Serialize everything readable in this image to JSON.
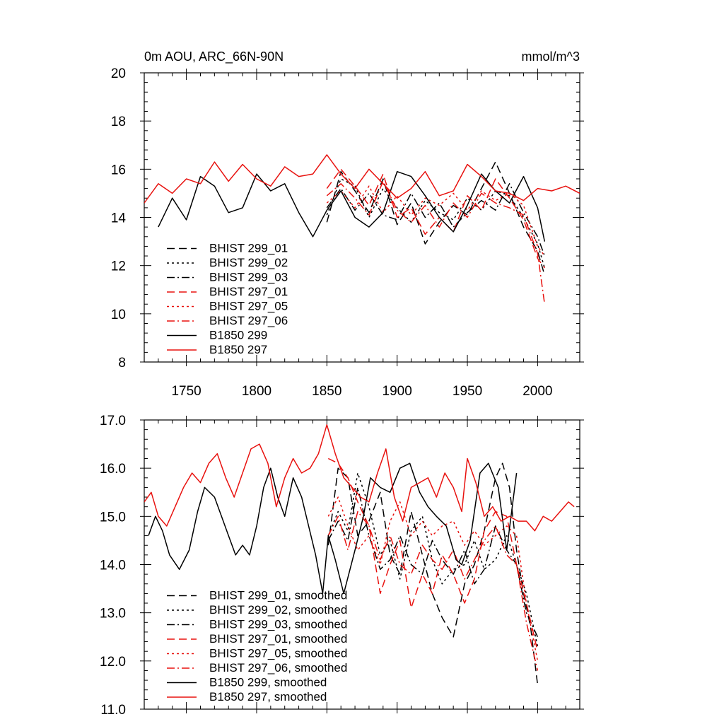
{
  "chart_data": [
    {
      "type": "line",
      "title": "0m AOU, ARC_66N-90N",
      "units": "mmol/m^3",
      "xlim": [
        1720,
        2030
      ],
      "ylim": [
        8,
        20
      ],
      "xticks": [
        1750,
        1800,
        1850,
        1900,
        1950,
        2000
      ],
      "xtick_labels": [
        "1750",
        "1800",
        "1850",
        "1900",
        "1950",
        "2000"
      ],
      "yticks": [
        8,
        10,
        12,
        14,
        16,
        18,
        20
      ],
      "ytick_labels": [
        "8",
        "10",
        "12",
        "14",
        "16",
        "18",
        "20"
      ],
      "legend_position": "bottom-left",
      "series": [
        {
          "name": "BHIST 299_01",
          "color": "#000000",
          "dash": "dashed",
          "x": [
            1850,
            1860,
            1870,
            1880,
            1890,
            1900,
            1910,
            1920,
            1930,
            1940,
            1950,
            1960,
            1970,
            1980,
            1990,
            2000,
            2005
          ],
          "y": [
            13.8,
            15.9,
            15.1,
            14.2,
            15.6,
            13.7,
            14.6,
            12.9,
            13.8,
            14.5,
            14.1,
            15.2,
            16.3,
            15.0,
            13.6,
            12.6,
            11.6
          ]
        },
        {
          "name": "BHIST 299_02",
          "color": "#000000",
          "dash": "dotted",
          "x": [
            1850,
            1860,
            1870,
            1880,
            1890,
            1900,
            1910,
            1920,
            1930,
            1940,
            1950,
            1960,
            1970,
            1980,
            1990,
            2000,
            2005
          ],
          "y": [
            14.1,
            15.6,
            15.3,
            14.0,
            15.2,
            14.4,
            13.8,
            14.7,
            14.2,
            13.9,
            14.8,
            14.3,
            15.1,
            14.9,
            14.0,
            12.9,
            11.9
          ]
        },
        {
          "name": "BHIST 299_03",
          "color": "#000000",
          "dash": "dashdot",
          "x": [
            1850,
            1860,
            1870,
            1880,
            1890,
            1900,
            1910,
            1920,
            1930,
            1940,
            1950,
            1960,
            1970,
            1980,
            1990,
            2000,
            2005
          ],
          "y": [
            14.4,
            15.2,
            14.3,
            15.0,
            14.1,
            13.9,
            15.0,
            14.0,
            14.6,
            13.6,
            14.2,
            14.7,
            14.3,
            15.4,
            14.2,
            13.2,
            12.4
          ]
        },
        {
          "name": "BHIST 297_01",
          "color": "#e8120f",
          "dash": "dashed",
          "x": [
            1850,
            1860,
            1870,
            1880,
            1890,
            1900,
            1910,
            1920,
            1930,
            1940,
            1950,
            1960,
            1970,
            1980,
            1990,
            2000,
            2005
          ],
          "y": [
            15.2,
            16.0,
            15.3,
            14.5,
            15.8,
            14.0,
            14.4,
            13.3,
            14.0,
            13.4,
            14.9,
            14.3,
            15.6,
            14.8,
            13.9,
            12.3,
            11.9
          ]
        },
        {
          "name": "BHIST 297_05",
          "color": "#e8120f",
          "dash": "dotted",
          "x": [
            1850,
            1860,
            1870,
            1880,
            1890,
            1900,
            1910,
            1920,
            1930,
            1940,
            1950,
            1960,
            1970,
            1980,
            1990,
            2000,
            2005
          ],
          "y": [
            14.6,
            15.1,
            14.4,
            15.3,
            14.2,
            14.9,
            14.1,
            14.8,
            14.5,
            15.0,
            14.3,
            15.1,
            14.7,
            15.0,
            14.5,
            12.8,
            12.4
          ]
        },
        {
          "name": "BHIST 297_06",
          "color": "#e8120f",
          "dash": "dashdot",
          "x": [
            1850,
            1860,
            1870,
            1880,
            1890,
            1900,
            1910,
            1920,
            1930,
            1940,
            1950,
            1960,
            1970,
            1980,
            1990,
            2000,
            2005
          ],
          "y": [
            14.9,
            15.4,
            14.8,
            14.1,
            15.5,
            14.3,
            13.8,
            14.5,
            13.6,
            14.6,
            14.0,
            15.0,
            14.6,
            14.4,
            14.1,
            12.5,
            10.4
          ]
        },
        {
          "name": "B1850 299",
          "color": "#000000",
          "dash": "solid",
          "x": [
            1730,
            1740,
            1750,
            1760,
            1770,
            1780,
            1790,
            1800,
            1810,
            1820,
            1830,
            1840,
            1850,
            1860,
            1870,
            1880,
            1890,
            1900,
            1910,
            1920,
            1930,
            1940,
            1950,
            1960,
            1970,
            1980,
            1990,
            2000,
            2005
          ],
          "y": [
            13.6,
            14.8,
            13.9,
            15.7,
            15.3,
            14.2,
            14.4,
            15.8,
            15.1,
            15.4,
            14.2,
            13.2,
            14.3,
            15.1,
            14.0,
            13.6,
            14.2,
            15.9,
            15.7,
            14.9,
            14.0,
            13.4,
            14.5,
            15.8,
            15.1,
            14.6,
            15.7,
            14.4,
            13.0
          ]
        },
        {
          "name": "B1850 297",
          "color": "#e8120f",
          "dash": "solid",
          "x": [
            1720,
            1730,
            1740,
            1750,
            1760,
            1770,
            1780,
            1790,
            1800,
            1810,
            1820,
            1830,
            1840,
            1850,
            1860,
            1870,
            1880,
            1890,
            1900,
            1910,
            1920,
            1930,
            1940,
            1950,
            1960,
            1970,
            1980,
            1990,
            2000,
            2010,
            2020,
            2030
          ],
          "y": [
            14.6,
            15.4,
            15.0,
            15.6,
            15.4,
            16.3,
            15.5,
            16.2,
            15.6,
            15.3,
            16.1,
            15.7,
            15.8,
            16.6,
            15.8,
            15.2,
            16.0,
            15.4,
            14.8,
            15.2,
            15.9,
            14.9,
            15.1,
            16.2,
            15.7,
            15.1,
            15.0,
            14.7,
            15.2,
            15.1,
            15.3,
            15.0
          ]
        }
      ]
    },
    {
      "type": "line",
      "title": "",
      "xlim": [
        1720,
        2030
      ],
      "ylim": [
        11.0,
        17.0
      ],
      "yticks": [
        11.0,
        12.0,
        13.0,
        14.0,
        15.0,
        16.0,
        17.0
      ],
      "ytick_labels": [
        "11.0",
        "12.0",
        "13.0",
        "14.0",
        "15.0",
        "16.0",
        "17.0"
      ],
      "xticks": [
        1750,
        1800,
        1850,
        1900,
        1950,
        2000
      ],
      "legend_position": "bottom-left",
      "series": [
        {
          "name": "BHIST 299_01, smoothed",
          "color": "#000000",
          "dash": "dashed",
          "x": [
            1851,
            1858,
            1865,
            1872,
            1880,
            1888,
            1895,
            1902,
            1910,
            1918,
            1925,
            1932,
            1940,
            1948,
            1955,
            1962,
            1970,
            1975,
            1980,
            1985,
            1990,
            1995,
            2000
          ],
          "y": [
            14.4,
            16.0,
            15.8,
            14.6,
            14.9,
            15.5,
            14.2,
            13.8,
            15.1,
            14.2,
            13.4,
            12.9,
            12.5,
            13.6,
            14.0,
            14.7,
            15.8,
            16.1,
            15.6,
            14.3,
            13.4,
            12.7,
            11.5
          ]
        },
        {
          "name": "BHIST 299_02, smoothed",
          "color": "#000000",
          "dash": "dotted",
          "x": [
            1851,
            1858,
            1865,
            1872,
            1880,
            1888,
            1895,
            1902,
            1910,
            1918,
            1925,
            1932,
            1940,
            1948,
            1955,
            1962,
            1970,
            1978,
            1985,
            1992,
            2000
          ],
          "y": [
            14.6,
            15.1,
            14.7,
            15.9,
            15.2,
            14.2,
            14.5,
            13.7,
            14.7,
            15.0,
            14.1,
            13.6,
            13.9,
            14.0,
            14.5,
            13.9,
            14.1,
            14.6,
            14.0,
            13.4,
            12.3
          ]
        },
        {
          "name": "BHIST 299_03, smoothed",
          "color": "#000000",
          "dash": "dashdot",
          "x": [
            1851,
            1858,
            1865,
            1872,
            1880,
            1888,
            1895,
            1902,
            1910,
            1918,
            1925,
            1932,
            1940,
            1948,
            1955,
            1962,
            1970,
            1978,
            1985,
            1992,
            2000
          ],
          "y": [
            14.5,
            14.9,
            14.5,
            15.6,
            14.6,
            13.9,
            14.1,
            14.6,
            14.0,
            13.8,
            14.5,
            14.1,
            13.8,
            14.3,
            13.6,
            13.9,
            14.8,
            14.3,
            14.0,
            13.0,
            12.5
          ]
        },
        {
          "name": "BHIST 297_01, smoothed",
          "color": "#e8120f",
          "dash": "dashed",
          "x": [
            1851,
            1858,
            1865,
            1872,
            1880,
            1888,
            1895,
            1902,
            1910,
            1918,
            1925,
            1932,
            1940,
            1948,
            1955,
            1962,
            1970,
            1978,
            1985,
            1992,
            2000
          ],
          "y": [
            16.2,
            16.1,
            15.8,
            15.3,
            14.8,
            13.4,
            14.0,
            14.5,
            13.1,
            13.8,
            13.4,
            14.2,
            13.8,
            13.2,
            13.7,
            14.7,
            15.1,
            15.0,
            14.0,
            13.2,
            12.2
          ]
        },
        {
          "name": "BHIST 297_05, smoothed",
          "color": "#e8120f",
          "dash": "dotted",
          "x": [
            1851,
            1858,
            1865,
            1872,
            1880,
            1888,
            1895,
            1902,
            1910,
            1918,
            1925,
            1932,
            1940,
            1948,
            1955,
            1962,
            1970,
            1978,
            1985,
            1992,
            2000
          ],
          "y": [
            15.0,
            15.4,
            14.8,
            14.3,
            14.6,
            14.0,
            14.9,
            15.3,
            14.6,
            14.9,
            14.6,
            14.8,
            14.9,
            14.4,
            14.7,
            14.4,
            14.6,
            14.8,
            14.6,
            13.2,
            12.0
          ]
        },
        {
          "name": "BHIST 297_06, smoothed",
          "color": "#e8120f",
          "dash": "dashdot",
          "x": [
            1851,
            1858,
            1865,
            1872,
            1880,
            1888,
            1895,
            1902,
            1910,
            1918,
            1925,
            1932,
            1940,
            1948,
            1955,
            1962,
            1970,
            1978,
            1985,
            1992,
            2000
          ],
          "y": [
            14.6,
            15.0,
            14.3,
            15.1,
            14.8,
            14.1,
            14.6,
            14.0,
            13.8,
            14.4,
            14.1,
            13.9,
            14.3,
            13.7,
            14.1,
            14.5,
            14.8,
            14.2,
            14.0,
            12.8,
            11.8
          ]
        },
        {
          "name": "B1850 299, smoothed",
          "color": "#000000",
          "dash": "solid",
          "x": [
            1723,
            1728,
            1733,
            1738,
            1745,
            1752,
            1758,
            1763,
            1770,
            1775,
            1780,
            1785,
            1790,
            1795,
            1800,
            1805,
            1810,
            1815,
            1820,
            1826,
            1832,
            1837,
            1842,
            1847,
            1851,
            1856,
            1862,
            1870,
            1876,
            1881,
            1888,
            1895,
            1902,
            1909,
            1916,
            1922,
            1928,
            1935,
            1942,
            1946,
            1952,
            1959,
            1965,
            1972,
            1978,
            1985
          ],
          "y": [
            14.6,
            15.0,
            14.7,
            14.2,
            13.9,
            14.3,
            15.1,
            15.6,
            15.4,
            15.0,
            14.6,
            14.2,
            14.4,
            14.2,
            14.8,
            15.6,
            16.0,
            15.4,
            15.0,
            15.8,
            15.4,
            14.8,
            14.2,
            13.4,
            14.6,
            14.1,
            13.4,
            14.3,
            15.0,
            15.8,
            15.6,
            15.5,
            16.0,
            16.1,
            15.5,
            15.2,
            15.0,
            14.8,
            14.1,
            14.0,
            14.5,
            15.9,
            16.1,
            15.6,
            14.3,
            15.9
          ]
        },
        {
          "name": "B1850 297, smoothed",
          "color": "#e8120f",
          "dash": "solid",
          "x": [
            1720,
            1725,
            1730,
            1736,
            1742,
            1748,
            1754,
            1760,
            1766,
            1772,
            1778,
            1784,
            1790,
            1796,
            1802,
            1808,
            1814,
            1820,
            1826,
            1832,
            1838,
            1844,
            1850,
            1856,
            1862,
            1868,
            1874,
            1880,
            1886,
            1892,
            1898,
            1904,
            1910,
            1916,
            1922,
            1928,
            1934,
            1940,
            1946,
            1950,
            1956,
            1962,
            1968,
            1974,
            1980,
            1986,
            1992,
            1998,
            2004,
            2010,
            2016,
            2022,
            2026
          ],
          "y": [
            15.3,
            15.5,
            15.0,
            14.8,
            15.2,
            15.6,
            15.9,
            15.7,
            16.1,
            16.3,
            15.8,
            15.4,
            15.9,
            16.4,
            16.5,
            16.1,
            15.2,
            15.8,
            16.2,
            15.9,
            16.0,
            16.3,
            16.9,
            16.3,
            15.8,
            15.6,
            15.4,
            15.3,
            15.9,
            16.4,
            15.4,
            14.9,
            15.6,
            15.7,
            15.8,
            15.4,
            15.9,
            15.6,
            15.1,
            16.2,
            15.7,
            15.0,
            15.2,
            14.9,
            15.0,
            14.9,
            14.9,
            14.7,
            15.0,
            14.9,
            15.1,
            15.3,
            15.2
          ]
        }
      ]
    }
  ]
}
